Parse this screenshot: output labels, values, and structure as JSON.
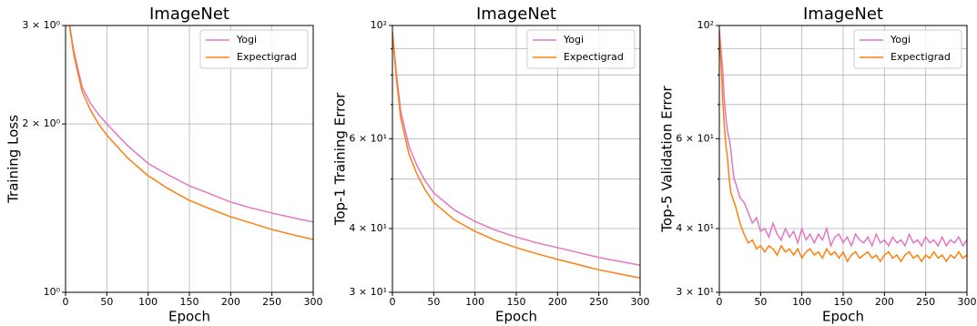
{
  "chart_data": [
    {
      "type": "line",
      "title": "ImageNet",
      "x_label": "Epoch",
      "y_label": "Training Loss",
      "log_y": true,
      "grid": true,
      "legend": "upper right",
      "x": [
        0,
        5,
        10,
        20,
        30,
        40,
        50,
        75,
        100,
        125,
        150,
        175,
        200,
        225,
        250,
        275,
        300
      ],
      "xlim": [
        0,
        300
      ],
      "xticks": [
        0,
        50,
        100,
        150,
        200,
        250,
        300
      ],
      "ylim": [
        1,
        3
      ],
      "yticks": [
        {
          "value": 1,
          "label": "10⁰"
        },
        {
          "value": 2,
          "label": "2 × 10⁰"
        },
        {
          "value": 3,
          "label": "3 × 10⁰"
        }
      ],
      "series": [
        {
          "name": "Yogi",
          "color": "#e377c2",
          "values": [
            3.6,
            3.0,
            2.7,
            2.33,
            2.18,
            2.08,
            2.0,
            1.83,
            1.7,
            1.62,
            1.55,
            1.5,
            1.45,
            1.415,
            1.386,
            1.36,
            1.335
          ]
        },
        {
          "name": "Expectigrad",
          "color": "#ff7f0e",
          "values": [
            3.6,
            2.98,
            2.66,
            2.29,
            2.12,
            2.0,
            1.91,
            1.74,
            1.616,
            1.53,
            1.46,
            1.41,
            1.365,
            1.33,
            1.295,
            1.268,
            1.243
          ]
        }
      ]
    },
    {
      "type": "line",
      "title": "ImageNet",
      "x_label": "Epoch",
      "y_label": "Top-1 Training Error",
      "log_y": true,
      "grid": true,
      "legend": "upper right",
      "x": [
        0,
        5,
        10,
        20,
        30,
        40,
        50,
        75,
        100,
        125,
        150,
        175,
        200,
        225,
        250,
        275,
        300
      ],
      "xlim": [
        0,
        300
      ],
      "xticks": [
        0,
        50,
        100,
        150,
        200,
        250,
        300
      ],
      "ylim": [
        30,
        100
      ],
      "yticks": [
        {
          "value": 30,
          "label": "3 × 10¹"
        },
        {
          "value": 40,
          "label": "4 × 10¹"
        },
        {
          "value": 60,
          "label": "6 × 10¹"
        },
        {
          "value": 100,
          "label": "10²"
        }
      ],
      "yminor": [
        50,
        70,
        80,
        90
      ],
      "series": [
        {
          "name": "Yogi",
          "color": "#e377c2",
          "values": [
            97,
            80,
            68,
            58,
            53,
            49.5,
            47,
            43.5,
            41.3,
            39.7,
            38.5,
            37.5,
            36.7,
            35.9,
            35.1,
            34.5,
            33.9
          ]
        },
        {
          "name": "Expectigrad",
          "color": "#ff7f0e",
          "values": [
            97,
            78,
            66,
            56,
            51,
            47.5,
            45,
            41.6,
            39.5,
            37.9,
            36.7,
            35.7,
            34.8,
            34.0,
            33.2,
            32.6,
            32.0
          ]
        }
      ]
    },
    {
      "type": "line",
      "title": "ImageNet",
      "x_label": "Epoch",
      "y_label": "Top-5 Validation Error",
      "log_y": true,
      "grid": true,
      "legend": "upper right",
      "x": [
        0,
        2,
        4,
        6,
        8,
        10,
        12,
        14,
        16,
        18,
        20,
        25,
        30,
        35,
        40,
        45,
        50,
        55,
        60,
        65,
        70,
        75,
        80,
        85,
        90,
        95,
        100,
        105,
        110,
        115,
        120,
        125,
        130,
        135,
        140,
        145,
        150,
        155,
        160,
        165,
        170,
        175,
        180,
        185,
        190,
        195,
        200,
        205,
        210,
        215,
        220,
        225,
        230,
        235,
        240,
        245,
        250,
        255,
        260,
        265,
        270,
        275,
        280,
        285,
        290,
        295,
        300
      ],
      "xlim": [
        0,
        300
      ],
      "xticks": [
        0,
        50,
        100,
        150,
        200,
        250,
        300
      ],
      "ylim": [
        30,
        100
      ],
      "yticks": [
        {
          "value": 30,
          "label": "3 × 10¹"
        },
        {
          "value": 40,
          "label": "4 × 10¹"
        },
        {
          "value": 60,
          "label": "6 × 10¹"
        },
        {
          "value": 100,
          "label": "10²"
        }
      ],
      "yminor": [
        50,
        70,
        80,
        90
      ],
      "series": [
        {
          "name": "Yogi",
          "color": "#e377c2",
          "values": [
            98,
            90,
            82,
            72,
            66,
            62,
            60,
            57,
            53,
            50,
            49,
            46,
            45,
            43,
            41,
            42,
            39.5,
            40,
            38.5,
            41,
            39,
            38,
            40,
            38.5,
            39.5,
            37.5,
            40,
            38,
            39,
            37.5,
            39,
            38,
            40,
            37,
            38.5,
            39,
            37.5,
            38.5,
            37,
            39,
            38,
            37.5,
            38.5,
            37,
            39,
            37.5,
            38,
            37,
            38.5,
            37.5,
            38,
            37,
            39,
            37.5,
            38,
            37,
            38.5,
            37.5,
            38,
            37,
            38.5,
            37,
            38,
            37.5,
            38.5,
            37,
            38
          ]
        },
        {
          "name": "Expectigrad",
          "color": "#ff7f0e",
          "values": [
            97,
            85,
            72,
            64,
            58,
            55,
            50,
            47,
            46,
            45,
            44,
            41,
            39,
            37.5,
            38,
            36.5,
            37,
            36,
            37,
            36.5,
            35.5,
            37,
            36,
            36.5,
            35.5,
            36.5,
            35,
            36,
            36.5,
            35.5,
            36,
            35,
            36.5,
            35.5,
            36,
            35,
            36,
            34.5,
            35.5,
            36,
            35,
            35.5,
            36,
            35,
            35.5,
            34.5,
            35.5,
            36,
            35,
            35.5,
            34.5,
            35.5,
            36,
            35,
            35.5,
            34.5,
            35.5,
            35,
            36,
            35,
            35.5,
            34.5,
            35.5,
            35,
            36,
            35,
            35.5
          ]
        }
      ]
    }
  ]
}
